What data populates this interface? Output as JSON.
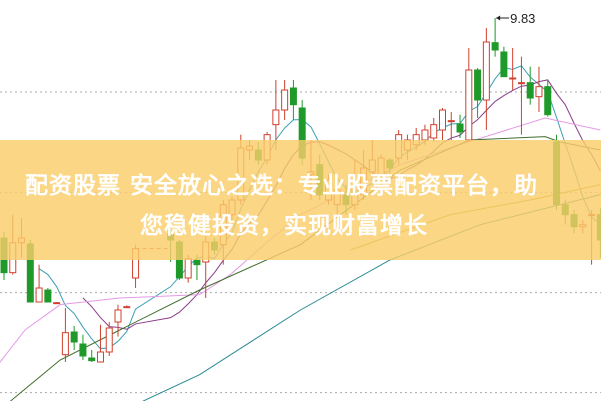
{
  "banner": {
    "line1": "配资股票 安全放心之选：专业股票配资平台，助",
    "line2": "您稳健投资，实现财富增长"
  },
  "colors": {
    "up": "#d0402e",
    "down": "#1f9a2a",
    "grid": "#aaaaaa",
    "banner": "#fbcd69"
  },
  "chart_data": {
    "type": "candlestick",
    "title": "",
    "grid": true,
    "grid_levels": [
      8.72,
      7.21,
      5.71,
      4.21
    ],
    "max_label": "9.83",
    "max_value": 9.83,
    "candles": [
      {
        "i": 0,
        "o": 6.53,
        "h": 6.62,
        "l": 5.9,
        "c": 6.01
      },
      {
        "i": 1,
        "o": 6.01,
        "h": 6.88,
        "l": 5.98,
        "c": 6.46
      },
      {
        "i": 2,
        "o": 6.46,
        "h": 6.83,
        "l": 6.23,
        "c": 6.53
      },
      {
        "i": 3,
        "o": 6.44,
        "h": 6.5,
        "l": 5.57,
        "c": 5.57
      },
      {
        "i": 4,
        "o": 5.57,
        "h": 6.13,
        "l": 5.57,
        "c": 5.78
      },
      {
        "i": 5,
        "o": 5.75,
        "h": 5.78,
        "l": 5.57,
        "c": 5.57
      },
      {
        "i": 6,
        "o": 5.56,
        "h": 5.57,
        "l": 5.55,
        "c": 5.56
      },
      {
        "i": 7,
        "o": 4.78,
        "h": 5.48,
        "l": 4.67,
        "c": 5.11
      },
      {
        "i": 8,
        "o": 5.12,
        "h": 5.21,
        "l": 4.85,
        "c": 4.97
      },
      {
        "i": 9,
        "o": 4.94,
        "h": 5.08,
        "l": 4.7,
        "c": 4.76
      },
      {
        "i": 10,
        "o": 4.73,
        "h": 4.85,
        "l": 4.67,
        "c": 4.69
      },
      {
        "i": 11,
        "o": 4.67,
        "h": 5.23,
        "l": 4.66,
        "c": 4.82
      },
      {
        "i": 12,
        "o": 4.82,
        "h": 5.27,
        "l": 4.76,
        "c": 5.18
      },
      {
        "i": 13,
        "o": 5.27,
        "h": 5.53,
        "l": 5.05,
        "c": 5.45
      },
      {
        "i": 14,
        "o": 5.5,
        "h": 5.52,
        "l": 5.49,
        "c": 5.5
      },
      {
        "i": 15,
        "o": 5.93,
        "h": 6.43,
        "l": 5.78,
        "c": 6.37
      },
      {
        "i": 19,
        "o": 6.59,
        "h": 6.88,
        "l": 6.17,
        "c": 6.5
      },
      {
        "i": 20,
        "o": 6.47,
        "h": 6.5,
        "l": 5.9,
        "c": 5.93
      },
      {
        "i": 21,
        "o": 5.93,
        "h": 6.28,
        "l": 5.86,
        "c": 6.22
      },
      {
        "i": 22,
        "o": 6.2,
        "h": 6.28,
        "l": 5.9,
        "c": 6.13
      },
      {
        "i": 23,
        "o": 6.17,
        "h": 6.56,
        "l": 5.63,
        "c": 6.47
      },
      {
        "i": 24,
        "o": 6.47,
        "h": 6.53,
        "l": 6.28,
        "c": 6.35
      },
      {
        "i": 25,
        "o": 6.43,
        "h": 7.1,
        "l": 6.13,
        "c": 7.03
      },
      {
        "i": 26,
        "o": 6.88,
        "h": 7.16,
        "l": 6.73,
        "c": 7.1
      },
      {
        "i": 27,
        "o": 7.1,
        "h": 8.08,
        "l": 7.03,
        "c": 7.88
      },
      {
        "i": 28,
        "o": 7.85,
        "h": 8.0,
        "l": 7.7,
        "c": 7.91
      },
      {
        "i": 29,
        "o": 7.85,
        "h": 7.97,
        "l": 7.63,
        "c": 7.7
      },
      {
        "i": 30,
        "o": 7.7,
        "h": 8.12,
        "l": 7.63,
        "c": 8.08
      },
      {
        "i": 31,
        "o": 8.23,
        "h": 8.9,
        "l": 7.85,
        "c": 8.45
      },
      {
        "i": 32,
        "o": 8.45,
        "h": 8.9,
        "l": 8.3,
        "c": 8.75
      },
      {
        "i": 33,
        "o": 8.78,
        "h": 8.9,
        "l": 8.3,
        "c": 8.53
      },
      {
        "i": 34,
        "o": 8.48,
        "h": 8.6,
        "l": 7.63,
        "c": 7.73
      },
      {
        "i": 35,
        "o": 7.48,
        "h": 8.0,
        "l": 7.1,
        "c": 7.52
      },
      {
        "i": 36,
        "o": 7.63,
        "h": 7.78,
        "l": 7.1,
        "c": 7.18
      },
      {
        "i": 37,
        "o": 7.1,
        "h": 7.48,
        "l": 7.03,
        "c": 7.4
      },
      {
        "i": 38,
        "o": 7.03,
        "h": 7.4,
        "l": 6.88,
        "c": 7.25
      },
      {
        "i": 39,
        "o": 7.18,
        "h": 7.33,
        "l": 6.88,
        "c": 7.03
      },
      {
        "i": 40,
        "o": 7.03,
        "h": 7.7,
        "l": 6.95,
        "c": 7.18
      },
      {
        "i": 41,
        "o": 7.18,
        "h": 7.85,
        "l": 7.1,
        "c": 7.58
      },
      {
        "i": 42,
        "o": 7.52,
        "h": 8.0,
        "l": 7.4,
        "c": 7.7
      },
      {
        "i": 43,
        "o": 7.48,
        "h": 7.78,
        "l": 7.43,
        "c": 7.73
      },
      {
        "i": 44,
        "o": 7.7,
        "h": 7.73,
        "l": 7.48,
        "c": 7.58
      },
      {
        "i": 45,
        "o": 7.73,
        "h": 8.15,
        "l": 7.63,
        "c": 8.08
      },
      {
        "i": 46,
        "o": 7.85,
        "h": 8.08,
        "l": 7.7,
        "c": 8.0
      },
      {
        "i": 47,
        "o": 7.93,
        "h": 8.18,
        "l": 7.85,
        "c": 8.08
      },
      {
        "i": 48,
        "o": 8.0,
        "h": 8.23,
        "l": 7.93,
        "c": 8.15
      },
      {
        "i": 49,
        "o": 8.03,
        "h": 8.33,
        "l": 7.97,
        "c": 8.23
      },
      {
        "i": 50,
        "o": 8.15,
        "h": 8.48,
        "l": 8.0,
        "c": 8.45
      },
      {
        "i": 51,
        "o": 8.29,
        "h": 8.42,
        "l": 8.0,
        "c": 8.29
      },
      {
        "i": 52,
        "o": 8.24,
        "h": 8.38,
        "l": 8.03,
        "c": 8.12
      },
      {
        "i": 53,
        "o": 8.0,
        "h": 9.38,
        "l": 7.97,
        "c": 9.05
      },
      {
        "i": 54,
        "o": 9.05,
        "h": 9.08,
        "l": 8.33,
        "c": 8.6
      },
      {
        "i": 55,
        "o": 8.6,
        "h": 9.68,
        "l": 8.15,
        "c": 9.47
      },
      {
        "i": 56,
        "o": 9.46,
        "h": 9.83,
        "l": 9.25,
        "c": 9.35
      },
      {
        "i": 57,
        "o": 9.32,
        "h": 9.4,
        "l": 8.95,
        "c": 8.95
      },
      {
        "i": 58,
        "o": 8.93,
        "h": 9.38,
        "l": 8.75,
        "c": 8.93
      },
      {
        "i": 59,
        "o": 8.86,
        "h": 9.25,
        "l": 8.08,
        "c": 8.86
      },
      {
        "i": 60,
        "o": 8.86,
        "h": 9.1,
        "l": 8.53,
        "c": 8.63
      },
      {
        "i": 61,
        "o": 8.65,
        "h": 9.1,
        "l": 8.42,
        "c": 8.8
      },
      {
        "i": 62,
        "o": 8.8,
        "h": 8.9,
        "l": 8.35,
        "c": 8.38
      },
      {
        "i": 63,
        "o": 7.97,
        "h": 8.08,
        "l": 6.95,
        "c": 7.03
      },
      {
        "i": 64,
        "o": 7.03,
        "h": 7.1,
        "l": 6.73,
        "c": 6.88
      },
      {
        "i": 65,
        "o": 6.88,
        "h": 6.95,
        "l": 6.6,
        "c": 6.7
      },
      {
        "i": 66,
        "o": 6.7,
        "h": 6.8,
        "l": 6.6,
        "c": 6.73
      },
      {
        "i": 67,
        "o": 6.88,
        "h": 6.95,
        "l": 6.13,
        "c": 6.88
      },
      {
        "i": 68,
        "o": 6.88,
        "h": 6.98,
        "l": 6.23,
        "c": 6.5
      }
    ],
    "halt_line": {
      "from_i": 15,
      "to_i": 19,
      "value": 6.37
    },
    "moving_averages": [
      {
        "color": "#3c9fb4",
        "computed_period": 5
      },
      {
        "color": "#8a3d8a",
        "computed_period": 10
      },
      {
        "color": "#e49ae6",
        "points": [
          [
            -0.5,
            4.66
          ],
          [
            2.4,
            5.15
          ],
          [
            6.4,
            5.53
          ],
          [
            13.2,
            5.63
          ],
          [
            22.3,
            5.68
          ],
          [
            25.8,
            5.98
          ],
          [
            30.3,
            6.5
          ],
          [
            33.8,
            6.88
          ],
          [
            45.2,
            7.63
          ],
          [
            52,
            7.93
          ],
          [
            61.7,
            8.33
          ],
          [
            68,
            8.15
          ]
        ]
      },
      {
        "color": "#3f6e2c",
        "points": [
          [
            0.7,
            4.08
          ],
          [
            6.4,
            4.7
          ],
          [
            13.2,
            5.15
          ],
          [
            22.3,
            5.75
          ],
          [
            33.8,
            6.43
          ],
          [
            45.2,
            7.55
          ],
          [
            53.1,
            8.0
          ],
          [
            61.7,
            8.05
          ],
          [
            63.4,
            7.97
          ],
          [
            68,
            7.85
          ]
        ]
      },
      {
        "color": "#b49a3a",
        "points": [
          [
            39.5,
            6.35
          ],
          [
            50.9,
            6.88
          ],
          [
            60,
            7.1
          ],
          [
            68,
            7.33
          ]
        ]
      },
      {
        "color": "#2a8a94",
        "points": [
          [
            15.8,
            4.08
          ],
          [
            22.3,
            4.48
          ],
          [
            33.8,
            5.45
          ],
          [
            44,
            6.2
          ],
          [
            54.3,
            6.73
          ],
          [
            68,
            7.18
          ]
        ]
      }
    ]
  }
}
